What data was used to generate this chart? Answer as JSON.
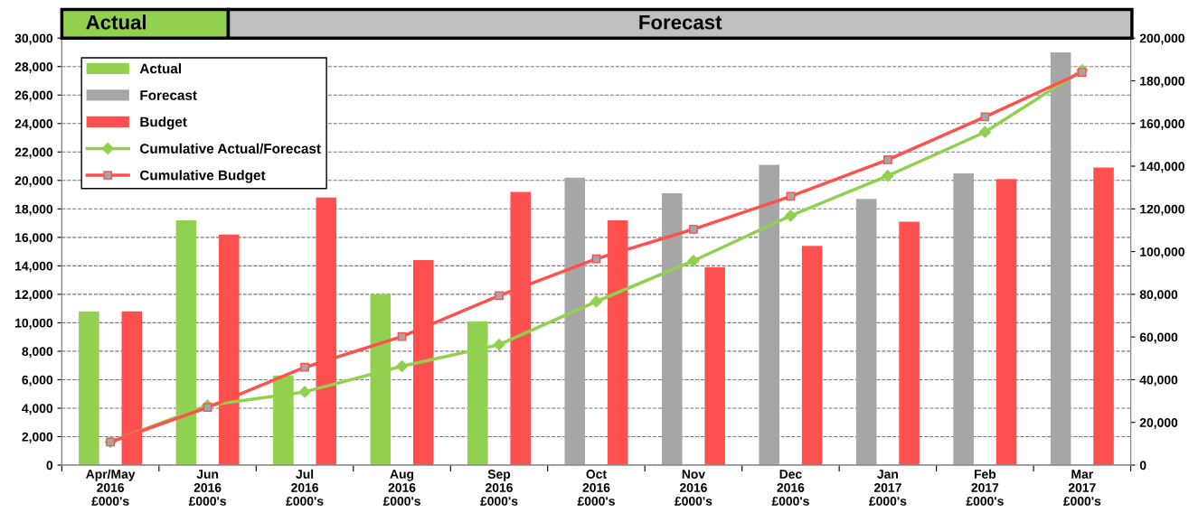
{
  "chart_data": {
    "type": "bar",
    "annotations": [
      "Actual",
      "Forecast"
    ],
    "categories": [
      "Apr/May\n2016\n£000's",
      "Jun\n2016\n£000's",
      "Jul\n2016\n£000's",
      "Aug\n2016\n£000's",
      "Sep\n2016\n£000's",
      "Oct\n2016\n£000's",
      "Nov\n2016\n£000's",
      "Dec\n2016\n£000's",
      "Jan\n2017\n£000's",
      "Feb\n2017\n£000's",
      "Mar\n2017\n£000's"
    ],
    "series": [
      {
        "name": "Actual",
        "color": "#92d050",
        "values": [
          10800,
          17200,
          6300,
          12000,
          10100,
          null,
          null,
          null,
          null,
          null,
          null
        ]
      },
      {
        "name": "Forecast",
        "color": "#a6a6a6",
        "values": [
          null,
          null,
          null,
          null,
          null,
          20200,
          19100,
          21100,
          18700,
          20500,
          29000
        ]
      },
      {
        "name": "Budget",
        "color": "#ff5050",
        "values": [
          10800,
          16200,
          18800,
          14400,
          19200,
          17200,
          13900,
          15400,
          17100,
          20100,
          20900
        ]
      },
      {
        "name": "Cumulative Actual/Forecast",
        "type": "line",
        "axis": "y2",
        "marker": "diamond",
        "color": "#92d050",
        "values": [
          10800,
          28000,
          34300,
          46300,
          56400,
          76600,
          95700,
          116800,
          135500,
          156000,
          185000
        ]
      },
      {
        "name": "Cumulative Budget",
        "type": "line",
        "axis": "y2",
        "marker": "square",
        "color": "#ff5050",
        "values": [
          10800,
          27000,
          45800,
          60200,
          79400,
          96600,
          110500,
          125900,
          143000,
          163100,
          184000
        ]
      }
    ],
    "ylim": [
      0,
      30000
    ],
    "yticks": [
      0,
      {
        "value": 2000,
        "label": "2,000"
      },
      {
        "value": 4000,
        "label": "4,000"
      },
      {
        "value": 6000,
        "label": "6,000"
      },
      {
        "value": 8000,
        "label": "8,000"
      },
      {
        "value": 10000,
        "label": "10,000"
      },
      {
        "value": 12000,
        "label": "12,000"
      },
      {
        "value": 14000,
        "label": "14,000"
      },
      {
        "value": 16000,
        "label": "16,000"
      },
      {
        "value": 18000,
        "label": "18,000"
      },
      {
        "value": 20000,
        "label": "20,000"
      },
      {
        "value": 22000,
        "label": "22,000"
      },
      {
        "value": 24000,
        "label": "24,000"
      },
      {
        "value": 26000,
        "label": "26,000"
      },
      {
        "value": 28000,
        "label": "28,000"
      },
      {
        "value": 30000,
        "label": "30,000"
      }
    ],
    "y2lim": [
      0,
      200000
    ],
    "y2ticks": [
      0,
      {
        "value": 20000,
        "label": "20,000"
      },
      {
        "value": 40000,
        "label": "40,000"
      },
      {
        "value": 60000,
        "label": "60,000"
      },
      {
        "value": 80000,
        "label": "80,000"
      },
      {
        "value": 100000,
        "label": "100,000"
      },
      {
        "value": 120000,
        "label": "120,000"
      },
      {
        "value": 140000,
        "label": "140,000"
      },
      {
        "value": 160000,
        "label": "160,000"
      },
      {
        "value": 180000,
        "label": "180,000"
      },
      {
        "value": 200000,
        "label": "200,000"
      }
    ],
    "grid": "y",
    "legend": "top left"
  }
}
